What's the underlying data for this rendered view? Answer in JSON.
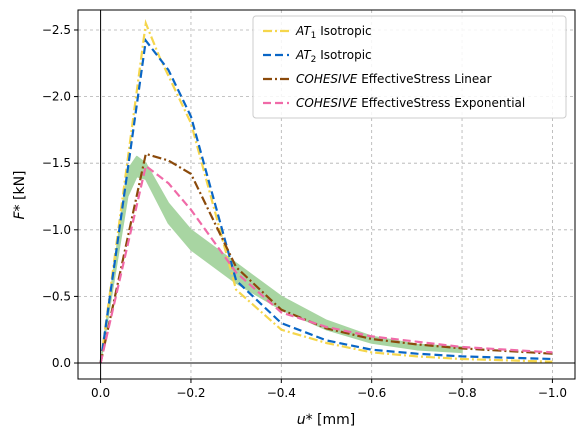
{
  "chart_data": {
    "type": "line",
    "title": "",
    "xlabel": "u* [mm]",
    "ylabel": "F* [kN]",
    "x_axis": {
      "min": 0.05,
      "max": -1.05,
      "ticks": [
        0.0,
        -0.2,
        -0.4,
        -0.6,
        -0.8,
        -1.0
      ],
      "tick_labels": [
        "0.0",
        "−0.2",
        "−0.4",
        "−0.6",
        "−0.8",
        "−1.0"
      ]
    },
    "y_axis": {
      "min": 0.12,
      "max": -2.65,
      "ticks": [
        0.0,
        -0.5,
        -1.0,
        -1.5,
        -2.0,
        -2.5
      ],
      "tick_labels": [
        "0.0",
        "−0.5",
        "−1.0",
        "−1.5",
        "−2.0",
        "−2.5"
      ]
    },
    "grid": true,
    "legend_position": "top-right",
    "band": {
      "color": "#a8d5a2",
      "upper": [
        [
          0.0,
          0.0
        ],
        [
          -0.06,
          -1.45
        ],
        [
          -0.08,
          -1.55
        ],
        [
          -0.1,
          -1.5
        ],
        [
          -0.15,
          -1.2
        ],
        [
          -0.2,
          -1.0
        ],
        [
          -0.3,
          -0.75
        ],
        [
          -0.4,
          -0.5
        ],
        [
          -0.5,
          -0.32
        ],
        [
          -0.6,
          -0.2
        ],
        [
          -0.7,
          -0.14
        ],
        [
          -0.8,
          -0.12
        ]
      ],
      "lower": [
        [
          0.0,
          0.0
        ],
        [
          -0.06,
          -1.25
        ],
        [
          -0.08,
          -1.4
        ],
        [
          -0.1,
          -1.38
        ],
        [
          -0.15,
          -1.05
        ],
        [
          -0.2,
          -0.85
        ],
        [
          -0.3,
          -0.6
        ],
        [
          -0.4,
          -0.4
        ],
        [
          -0.5,
          -0.25
        ],
        [
          -0.6,
          -0.15
        ],
        [
          -0.7,
          -0.1
        ],
        [
          -0.8,
          -0.08
        ]
      ]
    },
    "series": [
      {
        "name_sub": "1",
        "name_rest": " Isotropic",
        "name_italic": "AT",
        "color": "#f5d64c",
        "dash": "9,3,2,3",
        "points": [
          [
            0.0,
            0.0
          ],
          [
            -0.1,
            -2.55
          ],
          [
            -0.13,
            -2.3
          ],
          [
            -0.2,
            -1.8
          ],
          [
            -0.3,
            -0.55
          ],
          [
            -0.4,
            -0.25
          ],
          [
            -0.5,
            -0.15
          ],
          [
            -0.6,
            -0.08
          ],
          [
            -0.7,
            -0.05
          ],
          [
            -0.8,
            -0.03
          ],
          [
            -1.0,
            -0.01
          ]
        ]
      },
      {
        "name_sub": "2",
        "name_rest": " Isotropic",
        "name_italic": "AT",
        "color": "#0a66c6",
        "dash": "8,4",
        "points": [
          [
            0.0,
            0.0
          ],
          [
            -0.1,
            -2.42
          ],
          [
            -0.15,
            -2.2
          ],
          [
            -0.2,
            -1.85
          ],
          [
            -0.3,
            -0.62
          ],
          [
            -0.4,
            -0.3
          ],
          [
            -0.5,
            -0.17
          ],
          [
            -0.6,
            -0.1
          ],
          [
            -0.7,
            -0.07
          ],
          [
            -0.8,
            -0.05
          ],
          [
            -1.0,
            -0.03
          ]
        ]
      },
      {
        "name_sub": "",
        "name_rest": " EffectiveStress Linear",
        "name_italic": "COHESIVE",
        "color": "#8b4a0b",
        "dash": "9,3,2,3",
        "points": [
          [
            0.0,
            0.0
          ],
          [
            -0.1,
            -1.57
          ],
          [
            -0.15,
            -1.52
          ],
          [
            -0.2,
            -1.42
          ],
          [
            -0.3,
            -0.72
          ],
          [
            -0.4,
            -0.4
          ],
          [
            -0.5,
            -0.26
          ],
          [
            -0.6,
            -0.18
          ],
          [
            -0.7,
            -0.14
          ],
          [
            -0.8,
            -0.11
          ],
          [
            -1.0,
            -0.07
          ]
        ]
      },
      {
        "name_sub": "",
        "name_rest": " EffectiveStress Exponential",
        "name_italic": "COHESIVE",
        "color": "#f06aa8",
        "dash": "8,4",
        "points": [
          [
            0.0,
            0.0
          ],
          [
            -0.1,
            -1.48
          ],
          [
            -0.15,
            -1.35
          ],
          [
            -0.2,
            -1.15
          ],
          [
            -0.3,
            -0.68
          ],
          [
            -0.4,
            -0.38
          ],
          [
            -0.5,
            -0.27
          ],
          [
            -0.6,
            -0.2
          ],
          [
            -0.7,
            -0.16
          ],
          [
            -0.8,
            -0.12
          ],
          [
            -1.0,
            -0.08
          ]
        ]
      }
    ]
  }
}
